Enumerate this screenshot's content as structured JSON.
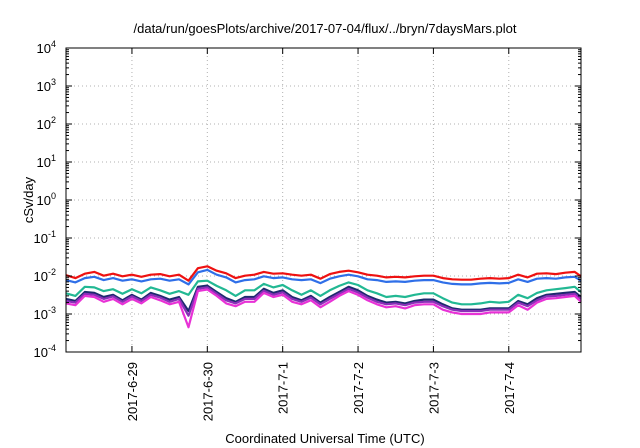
{
  "chart_data": {
    "type": "line",
    "title": "/data/run/goesPlots/archive/2017-07-04/flux/../bryn/7daysMars.plot",
    "xlabel": "Coordinated Universal Time (UTC)",
    "ylabel": "cSv/day",
    "yscale": "log",
    "ylim": [
      0.0001,
      10000
    ],
    "y_ticks": [
      {
        "base": "10",
        "exp": "-4",
        "value": 0.0001
      },
      {
        "base": "10",
        "exp": "-3",
        "value": 0.001
      },
      {
        "base": "10",
        "exp": "-2",
        "value": 0.01
      },
      {
        "base": "10",
        "exp": "-1",
        "value": 0.1
      },
      {
        "base": "10",
        "exp": "0",
        "value": 1
      },
      {
        "base": "10",
        "exp": "1",
        "value": 10
      },
      {
        "base": "10",
        "exp": "2",
        "value": 100
      },
      {
        "base": "10",
        "exp": "3",
        "value": 1000
      },
      {
        "base": "10",
        "exp": "4",
        "value": 10000
      }
    ],
    "xlim": [
      "2017-06-28T03:00",
      "2017-07-04T23:00"
    ],
    "x_ticks": [
      {
        "label": "2017-6-29",
        "value": "2017-06-29T00:00"
      },
      {
        "label": "2017-6-30",
        "value": "2017-06-30T00:00"
      },
      {
        "label": "2017-7-1",
        "value": "2017-07-01T00:00"
      },
      {
        "label": "2017-7-2",
        "value": "2017-07-02T00:00"
      },
      {
        "label": "2017-7-3",
        "value": "2017-07-03T00:00"
      },
      {
        "label": "2017-7-4",
        "value": "2017-07-04T00:00"
      }
    ],
    "grid": true,
    "x": [
      "2017-06-28T03:00",
      "2017-06-28T06:00",
      "2017-06-28T09:00",
      "2017-06-28T12:00",
      "2017-06-28T15:00",
      "2017-06-28T18:00",
      "2017-06-28T21:00",
      "2017-06-29T00:00",
      "2017-06-29T03:00",
      "2017-06-29T06:00",
      "2017-06-29T09:00",
      "2017-06-29T12:00",
      "2017-06-29T15:00",
      "2017-06-29T18:00",
      "2017-06-29T21:00",
      "2017-06-30T00:00",
      "2017-06-30T03:00",
      "2017-06-30T06:00",
      "2017-06-30T09:00",
      "2017-06-30T12:00",
      "2017-06-30T15:00",
      "2017-06-30T18:00",
      "2017-06-30T21:00",
      "2017-07-01T00:00",
      "2017-07-01T03:00",
      "2017-07-01T06:00",
      "2017-07-01T09:00",
      "2017-07-01T12:00",
      "2017-07-01T15:00",
      "2017-07-01T18:00",
      "2017-07-01T21:00",
      "2017-07-02T00:00",
      "2017-07-02T03:00",
      "2017-07-02T06:00",
      "2017-07-02T09:00",
      "2017-07-02T12:00",
      "2017-07-02T15:00",
      "2017-07-02T18:00",
      "2017-07-02T21:00",
      "2017-07-03T00:00",
      "2017-07-03T03:00",
      "2017-07-03T06:00",
      "2017-07-03T09:00",
      "2017-07-03T12:00",
      "2017-07-03T15:00",
      "2017-07-03T18:00",
      "2017-07-03T21:00",
      "2017-07-04T00:00",
      "2017-07-04T03:00",
      "2017-07-04T06:00",
      "2017-07-04T09:00",
      "2017-07-04T12:00",
      "2017-07-04T15:00",
      "2017-07-04T18:00",
      "2017-07-04T21:00",
      "2017-07-04T23:00"
    ],
    "series": [
      {
        "color": "#ee1111",
        "values": [
          0.0105,
          0.0088,
          0.0115,
          0.0128,
          0.0102,
          0.0115,
          0.0098,
          0.0108,
          0.0095,
          0.0108,
          0.0112,
          0.0098,
          0.0108,
          0.0075,
          0.016,
          0.018,
          0.0138,
          0.0118,
          0.0088,
          0.0102,
          0.0108,
          0.0128,
          0.0115,
          0.0118,
          0.0108,
          0.0102,
          0.0108,
          0.0085,
          0.0112,
          0.0128,
          0.0138,
          0.0125,
          0.0108,
          0.0102,
          0.0092,
          0.0095,
          0.0092,
          0.0098,
          0.0102,
          0.0102,
          0.0088,
          0.0082,
          0.008,
          0.008,
          0.0085,
          0.0088,
          0.0085,
          0.0088,
          0.0108,
          0.0092,
          0.0115,
          0.0118,
          0.0112,
          0.0122,
          0.0128,
          0.0098
        ]
      },
      {
        "color": "#2f6fe8",
        "values": [
          0.0078,
          0.0068,
          0.0088,
          0.0095,
          0.0078,
          0.0088,
          0.0075,
          0.0082,
          0.0072,
          0.0082,
          0.0085,
          0.0075,
          0.0082,
          0.006,
          0.0125,
          0.0145,
          0.0108,
          0.0092,
          0.0068,
          0.0078,
          0.0082,
          0.0098,
          0.0088,
          0.0092,
          0.0082,
          0.0078,
          0.0082,
          0.0065,
          0.0085,
          0.0098,
          0.0108,
          0.0098,
          0.0082,
          0.0078,
          0.007,
          0.0072,
          0.007,
          0.0075,
          0.0078,
          0.0078,
          0.0068,
          0.0062,
          0.006,
          0.006,
          0.0064,
          0.0066,
          0.0064,
          0.0066,
          0.0082,
          0.007,
          0.0085,
          0.0088,
          0.0085,
          0.0092,
          0.0095,
          0.0075
        ]
      },
      {
        "color": "#22b893",
        "values": [
          0.0035,
          0.003,
          0.0052,
          0.005,
          0.004,
          0.0045,
          0.0034,
          0.0045,
          0.0035,
          0.005,
          0.0042,
          0.0034,
          0.004,
          0.0032,
          0.0072,
          0.0075,
          0.0055,
          0.0042,
          0.003,
          0.0042,
          0.0042,
          0.0062,
          0.005,
          0.0058,
          0.0042,
          0.0032,
          0.0042,
          0.003,
          0.0042,
          0.0055,
          0.0068,
          0.0058,
          0.0042,
          0.0035,
          0.0028,
          0.003,
          0.0028,
          0.0032,
          0.0035,
          0.0035,
          0.0026,
          0.002,
          0.0018,
          0.0018,
          0.0019,
          0.0021,
          0.002,
          0.0021,
          0.0032,
          0.0026,
          0.0036,
          0.0042,
          0.0045,
          0.0048,
          0.0052,
          0.0038
        ]
      },
      {
        "color": "#1d2a6e",
        "values": [
          0.0025,
          0.0022,
          0.0038,
          0.0036,
          0.0028,
          0.0032,
          0.0023,
          0.0032,
          0.0024,
          0.0036,
          0.003,
          0.0024,
          0.0028,
          0.0012,
          0.0052,
          0.0056,
          0.0038,
          0.0026,
          0.0021,
          0.0028,
          0.0028,
          0.0046,
          0.0036,
          0.0042,
          0.0028,
          0.0023,
          0.003,
          0.002,
          0.0028,
          0.0038,
          0.0052,
          0.0042,
          0.003,
          0.0024,
          0.002,
          0.0021,
          0.0019,
          0.0022,
          0.0024,
          0.0024,
          0.0018,
          0.0014,
          0.0013,
          0.0013,
          0.0013,
          0.0014,
          0.0014,
          0.0014,
          0.0022,
          0.0018,
          0.0026,
          0.0032,
          0.0034,
          0.0036,
          0.0038,
          0.0028
        ]
      },
      {
        "color": "#8a2fb8",
        "values": [
          0.0022,
          0.002,
          0.0034,
          0.0032,
          0.0025,
          0.0029,
          0.0021,
          0.0029,
          0.0022,
          0.0032,
          0.0027,
          0.0021,
          0.0025,
          0.0009,
          0.0046,
          0.005,
          0.0034,
          0.0023,
          0.0019,
          0.0025,
          0.0025,
          0.0041,
          0.0032,
          0.0037,
          0.0025,
          0.0021,
          0.0027,
          0.0018,
          0.0025,
          0.0034,
          0.0046,
          0.0037,
          0.0027,
          0.0021,
          0.0018,
          0.0019,
          0.0017,
          0.002,
          0.0021,
          0.0021,
          0.0016,
          0.0013,
          0.0012,
          0.0012,
          0.0012,
          0.0013,
          0.0013,
          0.0013,
          0.002,
          0.0016,
          0.0023,
          0.0029,
          0.003,
          0.0032,
          0.0034,
          0.0025
        ]
      },
      {
        "color": "#e832d6",
        "values": [
          0.0019,
          0.0017,
          0.003,
          0.0028,
          0.0021,
          0.0025,
          0.0018,
          0.0025,
          0.0019,
          0.0028,
          0.0023,
          0.0018,
          0.0021,
          0.00045,
          0.004,
          0.0044,
          0.003,
          0.0019,
          0.0016,
          0.0021,
          0.0021,
          0.0036,
          0.0028,
          0.0032,
          0.0021,
          0.0018,
          0.0023,
          0.0015,
          0.0021,
          0.003,
          0.004,
          0.0032,
          0.0023,
          0.0018,
          0.0015,
          0.0016,
          0.0014,
          0.0017,
          0.0018,
          0.0018,
          0.0013,
          0.0011,
          0.001,
          0.001,
          0.001,
          0.0011,
          0.0011,
          0.0011,
          0.0017,
          0.0013,
          0.002,
          0.0025,
          0.0026,
          0.0028,
          0.003,
          0.0021
        ]
      }
    ]
  }
}
